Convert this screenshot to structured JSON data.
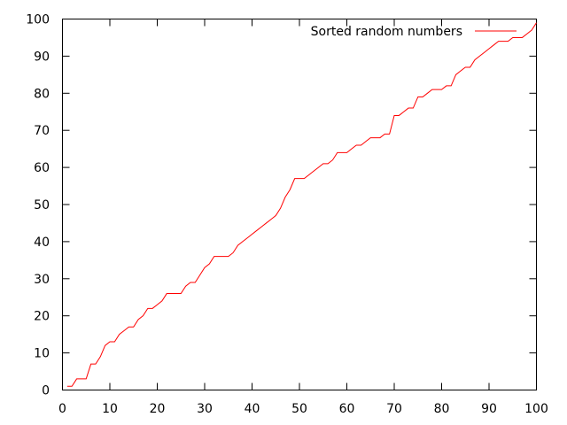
{
  "chart_data": {
    "type": "line",
    "title": "",
    "xlabel": "",
    "ylabel": "",
    "xlim": [
      0,
      100
    ],
    "ylim": [
      0,
      100
    ],
    "xticks": [
      "0",
      "10",
      "20",
      "30",
      "40",
      "50",
      "60",
      "70",
      "80",
      "90",
      "100"
    ],
    "yticks": [
      "0",
      "10",
      "20",
      "30",
      "40",
      "50",
      "60",
      "70",
      "80",
      "90",
      "100"
    ],
    "grid": false,
    "legend_position": "top-right",
    "series": [
      {
        "name": "Sorted random numbers",
        "color": "#ff0000",
        "x": [
          1,
          2,
          3,
          4,
          5,
          6,
          7,
          8,
          9,
          10,
          11,
          12,
          13,
          14,
          15,
          16,
          17,
          18,
          19,
          20,
          21,
          22,
          23,
          24,
          25,
          26,
          27,
          28,
          29,
          30,
          31,
          32,
          33,
          34,
          35,
          36,
          37,
          38,
          39,
          40,
          41,
          42,
          43,
          44,
          45,
          46,
          47,
          48,
          49,
          50,
          51,
          52,
          53,
          54,
          55,
          56,
          57,
          58,
          59,
          60,
          61,
          62,
          63,
          64,
          65,
          66,
          67,
          68,
          69,
          70,
          71,
          72,
          73,
          74,
          75,
          76,
          77,
          78,
          79,
          80,
          81,
          82,
          83,
          84,
          85,
          86,
          87,
          88,
          89,
          90,
          91,
          92,
          93,
          94,
          95,
          96,
          97,
          98,
          99,
          100
        ],
        "values": [
          1,
          1,
          3,
          3,
          3,
          7,
          7,
          9,
          12,
          13,
          13,
          15,
          16,
          17,
          17,
          19,
          20,
          22,
          22,
          23,
          24,
          26,
          26,
          26,
          26,
          28,
          29,
          29,
          31,
          33,
          34,
          36,
          36,
          36,
          36,
          37,
          39,
          40,
          41,
          42,
          43,
          44,
          45,
          46,
          47,
          49,
          52,
          54,
          57,
          57,
          57,
          58,
          59,
          60,
          61,
          61,
          62,
          64,
          64,
          64,
          65,
          66,
          66,
          67,
          68,
          68,
          68,
          69,
          69,
          74,
          74,
          75,
          76,
          76,
          79,
          79,
          80,
          81,
          81,
          81,
          82,
          82,
          85,
          86,
          87,
          87,
          89,
          90,
          91,
          92,
          93,
          94,
          94,
          94,
          95,
          95,
          95,
          96,
          97,
          99
        ]
      }
    ]
  }
}
